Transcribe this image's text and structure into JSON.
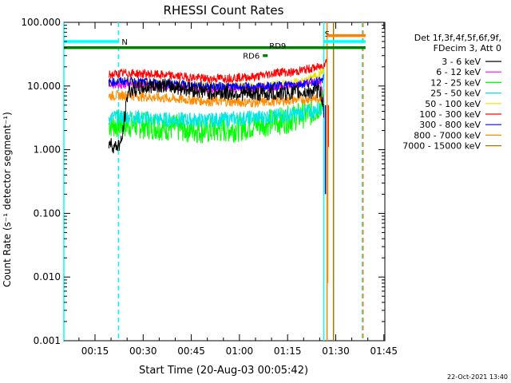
{
  "chart_data": {
    "type": "line",
    "title": "RHESSI Count Rates",
    "xlabel": "Start Time (20-Aug-03 00:05:42)",
    "ylabel": "Count Rate (s⁻¹ detector segment⁻¹)",
    "y_scale": "log",
    "ylim": [
      0.001,
      100
    ],
    "xlim_minutes_since_start": [
      0,
      100
    ],
    "x_tick_labels": [
      "00:15",
      "00:30",
      "00:45",
      "01:00",
      "01:15",
      "01:30",
      "01:45"
    ],
    "y_tick_labels": [
      "0.001",
      "0.010",
      "0.100",
      "1.000",
      "10.000",
      "100.000"
    ],
    "legend_header": [
      "Det 1f,3f,4f,5f,6f,9f,",
      "FDecim 3, Att 0"
    ],
    "legend_position": "right-outside",
    "series": [
      {
        "name": "3 - 6 keV",
        "color": "#000000",
        "x_minutes": [
          14,
          16,
          18,
          20,
          30,
          45,
          60,
          75,
          80,
          81
        ],
        "values": [
          1.3,
          1.1,
          1.3,
          8.5,
          10.5,
          8.0,
          7.5,
          8.0,
          8.5,
          4.0
        ]
      },
      {
        "name": "6 - 12 keV",
        "color": "#ff00ff",
        "x_minutes": [
          14,
          20,
          30,
          45,
          60,
          70,
          75,
          80,
          81
        ],
        "values": [
          10,
          10.5,
          10,
          9,
          9,
          10,
          11,
          12,
          5
        ]
      },
      {
        "name": "12 - 25 keV",
        "color": "#00ff00",
        "x_minutes": [
          14,
          20,
          30,
          45,
          55,
          60,
          70,
          78,
          81
        ],
        "values": [
          2.5,
          2.5,
          2.3,
          2.0,
          2.2,
          2.5,
          3.0,
          4.0,
          6.0
        ]
      },
      {
        "name": "25 - 50 keV",
        "color": "#00e6e6",
        "x_minutes": [
          14,
          20,
          30,
          45,
          60,
          70,
          78,
          81
        ],
        "values": [
          3.2,
          3.3,
          3.0,
          2.9,
          3.2,
          3.5,
          4.0,
          5.0
        ]
      },
      {
        "name": "50 - 100 keV",
        "color": "#e6e600",
        "x_minutes": [
          14,
          20,
          30,
          45,
          60,
          70,
          75,
          80,
          81
        ],
        "values": [
          11,
          12,
          11,
          10,
          10,
          11,
          12,
          16,
          18
        ]
      },
      {
        "name": "100 - 300 keV",
        "color": "#ff0000",
        "x_minutes": [
          14,
          20,
          30,
          45,
          60,
          68,
          70,
          75,
          80,
          82
        ],
        "values": [
          15,
          16,
          15,
          13,
          14,
          17,
          16,
          18,
          20,
          25
        ]
      },
      {
        "name": "300 - 800 keV",
        "color": "#0000ff",
        "x_minutes": [
          14,
          20,
          30,
          45,
          60,
          70,
          75,
          80,
          81
        ],
        "values": [
          11.5,
          12,
          11,
          10,
          9.5,
          10.5,
          11,
          12,
          13
        ]
      },
      {
        "name": "800 - 7000 keV",
        "color": "#ff8c00",
        "x_minutes": [
          14,
          20,
          30,
          45,
          60,
          70,
          75,
          80,
          81
        ],
        "values": [
          7,
          7.2,
          6.5,
          5.8,
          5.5,
          6,
          6.2,
          6.5,
          6.8
        ]
      },
      {
        "name": "7000 - 15000 keV",
        "color": "#a07800",
        "x_minutes": [],
        "values": []
      }
    ],
    "flags": [
      {
        "label": "N",
        "color": "#00ffff",
        "x_range_minutes": [
          0,
          17
        ],
        "level": 50
      },
      {
        "label": "S",
        "color": "#00ffff",
        "x_range_minutes": [
          81,
          94
        ],
        "level": 50
      },
      {
        "label": "",
        "color": "#ff8000",
        "x_range_minutes": [
          82,
          94
        ],
        "level": 62
      },
      {
        "label": "RD9",
        "color": "#008000",
        "x_range_minutes": [
          0,
          94
        ],
        "level": 40
      },
      {
        "label": "RD6",
        "color": "#008000",
        "x_range_minutes": [
          62,
          63.5
        ],
        "level": 30
      }
    ],
    "vertical_markers_minutes": [
      {
        "x": 0,
        "color": "#00ffff",
        "style": "solid"
      },
      {
        "x": 17,
        "color": "#00ffff",
        "style": "dashed"
      },
      {
        "x": 81,
        "color": "#00ffff",
        "style": "solid"
      },
      {
        "x": 82,
        "color": "#ff8000",
        "style": "solid"
      },
      {
        "x": 84,
        "color": "#a07800",
        "style": "solid"
      },
      {
        "x": 93,
        "color": "#00ffff",
        "style": "dashed"
      },
      {
        "x": 93.2,
        "color": "#ff8000",
        "style": "dashed"
      }
    ],
    "grid": false
  },
  "footer": {
    "timestamp": "22-Oct-2021 13:40"
  }
}
